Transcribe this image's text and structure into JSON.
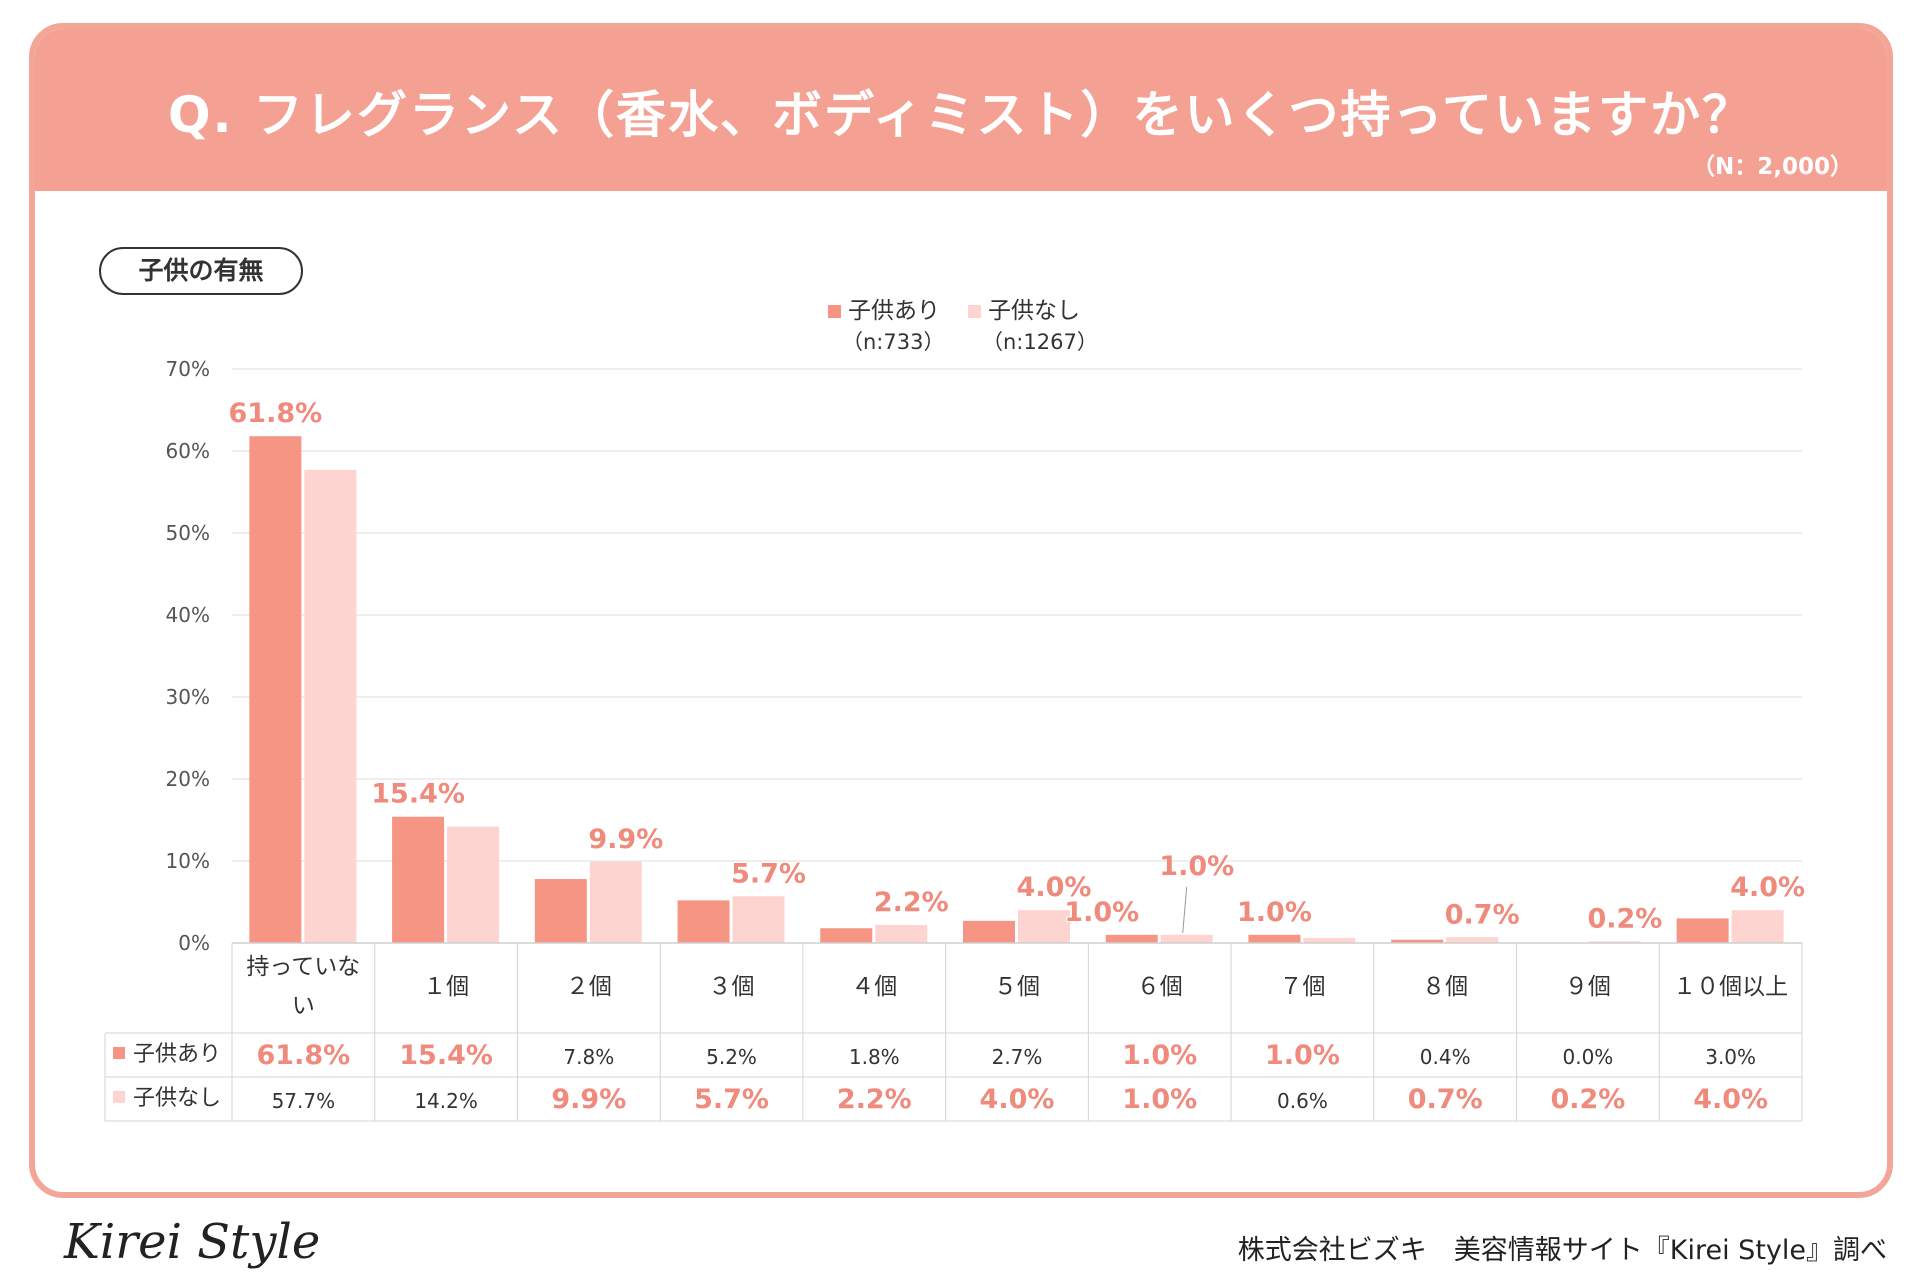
{
  "header": {
    "title": "Q. フレグランス（香水、ボディミスト）をいくつ持っていますか？",
    "sample": "（N：2,000）"
  },
  "section_label": "子供の有無",
  "footer": {
    "logo": "Kirei Style",
    "credit": "株式会社ビズキ　美容情報サイト『Kirei Style』調べ"
  },
  "colors": {
    "header_bg": "#f4a193",
    "series1": "#f79585",
    "series2": "#fdd4cf",
    "highlight_text": "#f08a7c"
  },
  "chart_data": {
    "type": "bar",
    "categories": [
      "持っていない",
      "１個",
      "２個",
      "３個",
      "４個",
      "５個",
      "６個",
      "７個",
      "８個",
      "９個",
      "１０個以上"
    ],
    "series": [
      {
        "name": "子供あり",
        "n": "（n:733）",
        "values": [
          61.8,
          15.4,
          7.8,
          5.2,
          1.8,
          2.7,
          1.0,
          1.0,
          0.4,
          0.0,
          3.0
        ],
        "labels": [
          "61.8%",
          "15.4%",
          "7.8%",
          "5.2%",
          "1.8%",
          "2.7%",
          "1.0%",
          "1.0%",
          "0.4%",
          "0.0%",
          "3.0%"
        ],
        "highlight": [
          true,
          true,
          false,
          false,
          false,
          false,
          true,
          true,
          false,
          false,
          false
        ],
        "bar_labels": [
          "61.8%",
          "15.4%",
          null,
          null,
          null,
          null,
          "1.0%",
          "1.0%",
          null,
          null,
          null
        ]
      },
      {
        "name": "子供なし",
        "n": "（n:1267）",
        "values": [
          57.7,
          14.2,
          9.9,
          5.7,
          2.2,
          4.0,
          1.0,
          0.6,
          0.7,
          0.2,
          4.0
        ],
        "labels": [
          "57.7%",
          "14.2%",
          "9.9%",
          "5.7%",
          "2.2%",
          "4.0%",
          "1.0%",
          "0.6%",
          "0.7%",
          "0.2%",
          "4.0%"
        ],
        "highlight": [
          false,
          false,
          true,
          true,
          true,
          true,
          true,
          false,
          true,
          true,
          true
        ],
        "bar_labels": [
          null,
          null,
          "9.9%",
          "5.7%",
          "2.2%",
          "4.0%",
          "1.0%",
          null,
          "0.7%",
          "0.2%",
          "4.0%"
        ]
      }
    ],
    "yticks": [
      "0%",
      "10%",
      "20%",
      "30%",
      "40%",
      "50%",
      "60%",
      "70%"
    ],
    "ylim": [
      0,
      70
    ],
    "legend": "top-center"
  }
}
